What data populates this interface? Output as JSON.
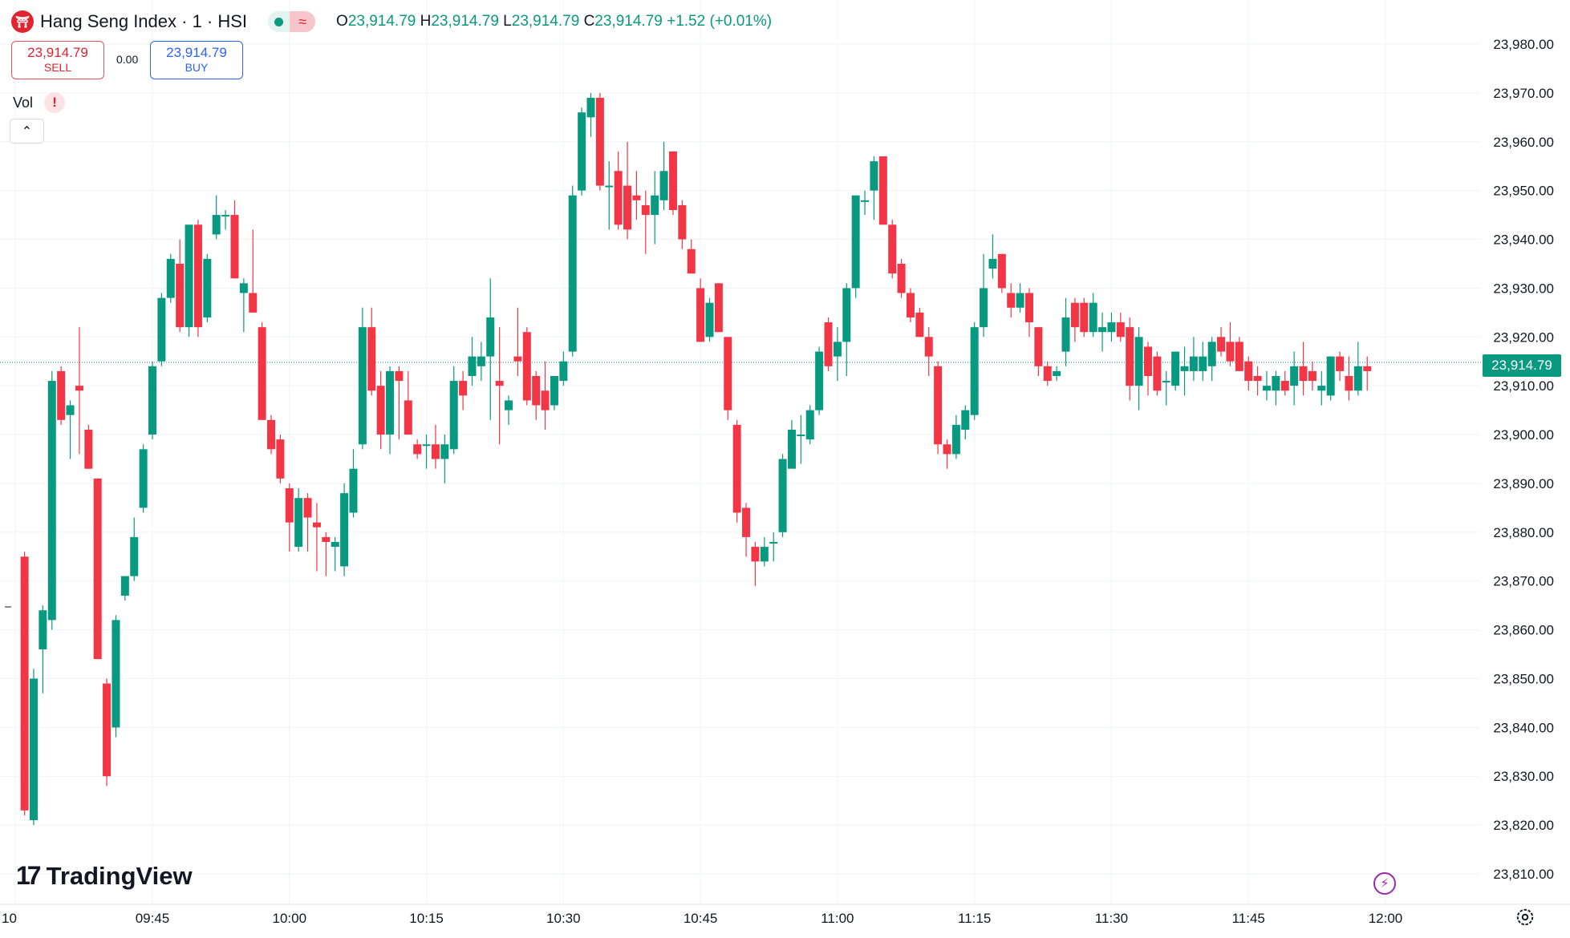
{
  "header": {
    "logo_glyph": "⛩",
    "title": "Hang Seng Index · 1 · HSI",
    "status_icon": "market-open-dot",
    "wave_glyph": "≈",
    "ohlc": {
      "o_label": "O",
      "o_value": "23,914.79",
      "h_label": "H",
      "h_value": "23,914.79",
      "l_label": "L",
      "l_value": "23,914.79",
      "c_label": "C",
      "c_value": "23,914.79",
      "change": "+1.52 (+0.01%)"
    }
  },
  "trade": {
    "sell_price": "23,914.79",
    "sell_label": "SELL",
    "spread": "0.00",
    "buy_price": "23,914.79",
    "buy_label": "BUY"
  },
  "vol": {
    "label": "Vol",
    "warning_glyph": "!"
  },
  "collapse_glyph": "⌃",
  "brand": {
    "mark": "17",
    "name": "TradingView"
  },
  "bolt_glyph": "⚡",
  "colors": {
    "up": "#089981",
    "down": "#f23645",
    "grid": "#f0f3fa",
    "text": "#131722",
    "price_line": "#089981"
  },
  "chart_data": {
    "type": "candlestick",
    "title": "Hang Seng Index · 1 · HSI",
    "interval_minutes": 1,
    "y_axis_labels": [
      "23,980.00",
      "23,970.00",
      "23,960.00",
      "23,950.00",
      "23,940.00",
      "23,930.00",
      "23,920.00",
      "23,910.00",
      "23,900.00",
      "23,890.00",
      "23,880.00",
      "23,870.00",
      "23,860.00",
      "23,850.00",
      "23,840.00",
      "23,830.00",
      "23,820.00",
      "23,810.00"
    ],
    "ylim": [
      23805,
      23985
    ],
    "x_axis_labels": [
      {
        "label": "10",
        "minute": 570
      },
      {
        "label": "09:45",
        "minute": 585
      },
      {
        "label": "10:00",
        "minute": 600
      },
      {
        "label": "10:15",
        "minute": 615
      },
      {
        "label": "10:30",
        "minute": 630
      },
      {
        "label": "10:45",
        "minute": 645
      },
      {
        "label": "11:00",
        "minute": 660
      },
      {
        "label": "11:15",
        "minute": 675
      },
      {
        "label": "11:30",
        "minute": 690
      },
      {
        "label": "11:45",
        "minute": 705
      },
      {
        "label": "12:00",
        "minute": 720
      }
    ],
    "last_price": 23914.79,
    "last_price_label": "23,914.79",
    "grid": true,
    "candles": [
      {
        "t": "09:31",
        "o": 23875,
        "h": 23876,
        "l": 23822,
        "c": 23823
      },
      {
        "t": "09:32",
        "o": 23821,
        "h": 23852,
        "l": 23820,
        "c": 23850
      },
      {
        "t": "09:33",
        "o": 23856,
        "h": 23865,
        "l": 23847,
        "c": 23864
      },
      {
        "t": "09:34",
        "o": 23862,
        "h": 23913,
        "l": 23860,
        "c": 23911
      },
      {
        "t": "09:35",
        "o": 23913,
        "h": 23914,
        "l": 23902,
        "c": 23903
      },
      {
        "t": "09:36",
        "o": 23904,
        "h": 23907,
        "l": 23895,
        "c": 23906
      },
      {
        "t": "09:37",
        "o": 23910,
        "h": 23922,
        "l": 23896,
        "c": 23909
      },
      {
        "t": "09:38",
        "o": 23901,
        "h": 23902,
        "l": 23893,
        "c": 23893
      },
      {
        "t": "09:39",
        "o": 23891,
        "h": 23891,
        "l": 23854,
        "c": 23854
      },
      {
        "t": "09:40",
        "o": 23849,
        "h": 23850,
        "l": 23828,
        "c": 23830
      },
      {
        "t": "09:41",
        "o": 23840,
        "h": 23863,
        "l": 23838,
        "c": 23862
      },
      {
        "t": "09:42",
        "o": 23867,
        "h": 23871,
        "l": 23866,
        "c": 23871
      },
      {
        "t": "09:43",
        "o": 23871,
        "h": 23883,
        "l": 23870,
        "c": 23879
      },
      {
        "t": "09:44",
        "o": 23885,
        "h": 23898,
        "l": 23884,
        "c": 23897
      },
      {
        "t": "09:45",
        "o": 23900,
        "h": 23915,
        "l": 23899,
        "c": 23914
      },
      {
        "t": "09:46",
        "o": 23915,
        "h": 23929,
        "l": 23914,
        "c": 23928
      },
      {
        "t": "09:47",
        "o": 23928,
        "h": 23937,
        "l": 23927,
        "c": 23936
      },
      {
        "t": "09:48",
        "o": 23935,
        "h": 23940,
        "l": 23921,
        "c": 23922
      },
      {
        "t": "09:49",
        "o": 23922,
        "h": 23943,
        "l": 23920,
        "c": 23943
      },
      {
        "t": "09:50",
        "o": 23943,
        "h": 23944,
        "l": 23920,
        "c": 23922
      },
      {
        "t": "09:51",
        "o": 23924,
        "h": 23937,
        "l": 23923,
        "c": 23936
      },
      {
        "t": "09:52",
        "o": 23941,
        "h": 23949,
        "l": 23940,
        "c": 23945
      },
      {
        "t": "09:53",
        "o": 23945,
        "h": 23946,
        "l": 23942,
        "c": 23945
      },
      {
        "t": "09:54",
        "o": 23945,
        "h": 23948,
        "l": 23932,
        "c": 23932
      },
      {
        "t": "09:55",
        "o": 23929,
        "h": 23932,
        "l": 23921,
        "c": 23931
      },
      {
        "t": "09:56",
        "o": 23929,
        "h": 23942,
        "l": 23925,
        "c": 23925
      },
      {
        "t": "09:57",
        "o": 23922,
        "h": 23923,
        "l": 23903,
        "c": 23903
      },
      {
        "t": "09:58",
        "o": 23903,
        "h": 23904,
        "l": 23896,
        "c": 23897
      },
      {
        "t": "09:59",
        "o": 23899,
        "h": 23900,
        "l": 23890,
        "c": 23891
      },
      {
        "t": "10:00",
        "o": 23889,
        "h": 23890,
        "l": 23876,
        "c": 23882
      },
      {
        "t": "10:01",
        "o": 23877,
        "h": 23889,
        "l": 23876,
        "c": 23887
      },
      {
        "t": "10:02",
        "o": 23887,
        "h": 23888,
        "l": 23876,
        "c": 23883
      },
      {
        "t": "10:03",
        "o": 23882,
        "h": 23886,
        "l": 23872,
        "c": 23881
      },
      {
        "t": "10:04",
        "o": 23879,
        "h": 23880,
        "l": 23871,
        "c": 23878
      },
      {
        "t": "10:05",
        "o": 23877,
        "h": 23879,
        "l": 23872,
        "c": 23878
      },
      {
        "t": "10:06",
        "o": 23873,
        "h": 23890,
        "l": 23871,
        "c": 23888
      },
      {
        "t": "10:07",
        "o": 23884,
        "h": 23897,
        "l": 23883,
        "c": 23893
      },
      {
        "t": "10:08",
        "o": 23898,
        "h": 23926,
        "l": 23897,
        "c": 23922
      },
      {
        "t": "10:09",
        "o": 23922,
        "h": 23926,
        "l": 23908,
        "c": 23909
      },
      {
        "t": "10:10",
        "o": 23910,
        "h": 23913,
        "l": 23897,
        "c": 23900
      },
      {
        "t": "10:11",
        "o": 23900,
        "h": 23914,
        "l": 23896,
        "c": 23913
      },
      {
        "t": "10:12",
        "o": 23913,
        "h": 23914,
        "l": 23899,
        "c": 23911
      },
      {
        "t": "10:13",
        "o": 23907,
        "h": 23913,
        "l": 23900,
        "c": 23900
      },
      {
        "t": "10:14",
        "o": 23898,
        "h": 23899,
        "l": 23895,
        "c": 23896
      },
      {
        "t": "10:15",
        "o": 23898,
        "h": 23900,
        "l": 23893,
        "c": 23898
      },
      {
        "t": "10:16",
        "o": 23898,
        "h": 23902,
        "l": 23893,
        "c": 23895
      },
      {
        "t": "10:17",
        "o": 23895,
        "h": 23900,
        "l": 23890,
        "c": 23898
      },
      {
        "t": "10:18",
        "o": 23897,
        "h": 23914,
        "l": 23896,
        "c": 23911
      },
      {
        "t": "10:19",
        "o": 23911,
        "h": 23913,
        "l": 23905,
        "c": 23908
      },
      {
        "t": "10:20",
        "o": 23912,
        "h": 23920,
        "l": 23910,
        "c": 23916
      },
      {
        "t": "10:21",
        "o": 23914,
        "h": 23919,
        "l": 23911,
        "c": 23916
      },
      {
        "t": "10:22",
        "o": 23916,
        "h": 23932,
        "l": 23903,
        "c": 23924
      },
      {
        "t": "10:23",
        "o": 23911,
        "h": 23922,
        "l": 23898,
        "c": 23910
      },
      {
        "t": "10:24",
        "o": 23905,
        "h": 23908,
        "l": 23902,
        "c": 23907
      },
      {
        "t": "10:25",
        "o": 23916,
        "h": 23926,
        "l": 23912,
        "c": 23915
      },
      {
        "t": "10:26",
        "o": 23921,
        "h": 23922,
        "l": 23906,
        "c": 23907
      },
      {
        "t": "10:27",
        "o": 23912,
        "h": 23913,
        "l": 23903,
        "c": 23906
      },
      {
        "t": "10:28",
        "o": 23909,
        "h": 23915,
        "l": 23901,
        "c": 23905
      },
      {
        "t": "10:29",
        "o": 23906,
        "h": 23912,
        "l": 23905,
        "c": 23912
      },
      {
        "t": "10:30",
        "o": 23911,
        "h": 23917,
        "l": 23910,
        "c": 23915
      },
      {
        "t": "10:31",
        "o": 23917,
        "h": 23951,
        "l": 23916,
        "c": 23949
      },
      {
        "t": "10:32",
        "o": 23950,
        "h": 23967,
        "l": 23949,
        "c": 23966
      },
      {
        "t": "10:33",
        "o": 23965,
        "h": 23970,
        "l": 23961,
        "c": 23969
      },
      {
        "t": "10:34",
        "o": 23969,
        "h": 23970,
        "l": 23950,
        "c": 23951
      },
      {
        "t": "10:35",
        "o": 23951,
        "h": 23956,
        "l": 23942,
        "c": 23951
      },
      {
        "t": "10:36",
        "o": 23954,
        "h": 23958,
        "l": 23942,
        "c": 23943
      },
      {
        "t": "10:37",
        "o": 23951,
        "h": 23960,
        "l": 23940,
        "c": 23942
      },
      {
        "t": "10:38",
        "o": 23949,
        "h": 23954,
        "l": 23944,
        "c": 23948
      },
      {
        "t": "10:39",
        "o": 23947,
        "h": 23950,
        "l": 23937,
        "c": 23945
      },
      {
        "t": "10:40",
        "o": 23945,
        "h": 23954,
        "l": 23939,
        "c": 23949
      },
      {
        "t": "10:41",
        "o": 23948,
        "h": 23960,
        "l": 23946,
        "c": 23954
      },
      {
        "t": "10:42",
        "o": 23958,
        "h": 23958,
        "l": 23945,
        "c": 23946
      },
      {
        "t": "10:43",
        "o": 23947,
        "h": 23948,
        "l": 23938,
        "c": 23940
      },
      {
        "t": "10:44",
        "o": 23938,
        "h": 23940,
        "l": 23933,
        "c": 23933
      },
      {
        "t": "10:45",
        "o": 23930,
        "h": 23932,
        "l": 23919,
        "c": 23919
      },
      {
        "t": "10:46",
        "o": 23920,
        "h": 23928,
        "l": 23919,
        "c": 23927
      },
      {
        "t": "10:47",
        "o": 23931,
        "h": 23931,
        "l": 23921,
        "c": 23921
      },
      {
        "t": "10:48",
        "o": 23920,
        "h": 23920,
        "l": 23903,
        "c": 23905
      },
      {
        "t": "10:49",
        "o": 23902,
        "h": 23903,
        "l": 23882,
        "c": 23884
      },
      {
        "t": "10:50",
        "o": 23885,
        "h": 23886,
        "l": 23875,
        "c": 23879
      },
      {
        "t": "10:51",
        "o": 23877,
        "h": 23878,
        "l": 23869,
        "c": 23874
      },
      {
        "t": "10:52",
        "o": 23874,
        "h": 23879,
        "l": 23873,
        "c": 23877
      },
      {
        "t": "10:53",
        "o": 23878,
        "h": 23880,
        "l": 23874,
        "c": 23878
      },
      {
        "t": "10:54",
        "o": 23880,
        "h": 23896,
        "l": 23879,
        "c": 23895
      },
      {
        "t": "10:55",
        "o": 23893,
        "h": 23903,
        "l": 23894,
        "c": 23901
      },
      {
        "t": "10:56",
        "o": 23900,
        "h": 23904,
        "l": 23894,
        "c": 23900
      },
      {
        "t": "10:57",
        "o": 23899,
        "h": 23906,
        "l": 23898,
        "c": 23905
      },
      {
        "t": "10:58",
        "o": 23905,
        "h": 23918,
        "l": 23904,
        "c": 23917
      },
      {
        "t": "10:59",
        "o": 23923,
        "h": 23924,
        "l": 23913,
        "c": 23914
      },
      {
        "t": "11:00",
        "o": 23916,
        "h": 23922,
        "l": 23911,
        "c": 23919
      },
      {
        "t": "11:01",
        "o": 23919,
        "h": 23931,
        "l": 23912,
        "c": 23930
      },
      {
        "t": "11:02",
        "o": 23930,
        "h": 23949,
        "l": 23928,
        "c": 23949
      },
      {
        "t": "11:03",
        "o": 23948,
        "h": 23950,
        "l": 23945,
        "c": 23948
      },
      {
        "t": "11:04",
        "o": 23950,
        "h": 23957,
        "l": 23944,
        "c": 23956
      },
      {
        "t": "11:05",
        "o": 23957,
        "h": 23957,
        "l": 23943,
        "c": 23943
      },
      {
        "t": "11:06",
        "o": 23943,
        "h": 23944,
        "l": 23932,
        "c": 23933
      },
      {
        "t": "11:07",
        "o": 23935,
        "h": 23936,
        "l": 23928,
        "c": 23929
      },
      {
        "t": "11:08",
        "o": 23929,
        "h": 23930,
        "l": 23923,
        "c": 23924
      },
      {
        "t": "11:09",
        "o": 23925,
        "h": 23926,
        "l": 23920,
        "c": 23920
      },
      {
        "t": "11:10",
        "o": 23920,
        "h": 23922,
        "l": 23912,
        "c": 23916
      },
      {
        "t": "11:11",
        "o": 23914,
        "h": 23915,
        "l": 23896,
        "c": 23898
      },
      {
        "t": "11:12",
        "o": 23898,
        "h": 23899,
        "l": 23893,
        "c": 23896
      },
      {
        "t": "11:13",
        "o": 23896,
        "h": 23904,
        "l": 23895,
        "c": 23902
      },
      {
        "t": "11:14",
        "o": 23901,
        "h": 23906,
        "l": 23899,
        "c": 23905
      },
      {
        "t": "11:15",
        "o": 23904,
        "h": 23923,
        "l": 23903,
        "c": 23922
      },
      {
        "t": "11:16",
        "o": 23922,
        "h": 23937,
        "l": 23920,
        "c": 23930
      },
      {
        "t": "11:17",
        "o": 23934,
        "h": 23941,
        "l": 23932,
        "c": 23936
      },
      {
        "t": "11:18",
        "o": 23937,
        "h": 23937,
        "l": 23929,
        "c": 23930
      },
      {
        "t": "11:19",
        "o": 23929,
        "h": 23931,
        "l": 23924,
        "c": 23926
      },
      {
        "t": "11:20",
        "o": 23926,
        "h": 23931,
        "l": 23925,
        "c": 23929
      },
      {
        "t": "11:21",
        "o": 23929,
        "h": 23930,
        "l": 23920,
        "c": 23923
      },
      {
        "t": "11:22",
        "o": 23922,
        "h": 23922,
        "l": 23912,
        "c": 23914
      },
      {
        "t": "11:23",
        "o": 23914,
        "h": 23915,
        "l": 23910,
        "c": 23911
      },
      {
        "t": "11:24",
        "o": 23912,
        "h": 23914,
        "l": 23911,
        "c": 23913
      },
      {
        "t": "11:25",
        "o": 23917,
        "h": 23928,
        "l": 23914,
        "c": 23924
      },
      {
        "t": "11:26",
        "o": 23927,
        "h": 23928,
        "l": 23919,
        "c": 23922
      },
      {
        "t": "11:27",
        "o": 23927,
        "h": 23928,
        "l": 23920,
        "c": 23921
      },
      {
        "t": "11:28",
        "o": 23921,
        "h": 23929,
        "l": 23920,
        "c": 23927
      },
      {
        "t": "11:29",
        "o": 23921,
        "h": 23925,
        "l": 23917,
        "c": 23922
      },
      {
        "t": "11:30",
        "o": 23921,
        "h": 23925,
        "l": 23919,
        "c": 23923
      },
      {
        "t": "11:31",
        "o": 23923,
        "h": 23925,
        "l": 23919,
        "c": 23920
      },
      {
        "t": "11:32",
        "o": 23922,
        "h": 23924,
        "l": 23907,
        "c": 23910
      },
      {
        "t": "11:33",
        "o": 23910,
        "h": 23922,
        "l": 23905,
        "c": 23920
      },
      {
        "t": "11:34",
        "o": 23918,
        "h": 23919,
        "l": 23908,
        "c": 23912
      },
      {
        "t": "11:35",
        "o": 23916,
        "h": 23917,
        "l": 23908,
        "c": 23909
      },
      {
        "t": "11:36",
        "o": 23911,
        "h": 23913,
        "l": 23906,
        "c": 23911
      },
      {
        "t": "11:37",
        "o": 23910,
        "h": 23917,
        "l": 23909,
        "c": 23917
      },
      {
        "t": "11:38",
        "o": 23913,
        "h": 23918,
        "l": 23908,
        "c": 23914
      },
      {
        "t": "11:39",
        "o": 23913,
        "h": 23920,
        "l": 23911,
        "c": 23916
      },
      {
        "t": "11:40",
        "o": 23913,
        "h": 23919,
        "l": 23911,
        "c": 23916
      },
      {
        "t": "11:41",
        "o": 23914,
        "h": 23920,
        "l": 23911,
        "c": 23919
      },
      {
        "t": "11:42",
        "o": 23920,
        "h": 23922,
        "l": 23916,
        "c": 23917
      },
      {
        "t": "11:43",
        "o": 23919,
        "h": 23923,
        "l": 23914,
        "c": 23915
      },
      {
        "t": "11:44",
        "o": 23919,
        "h": 23920,
        "l": 23913,
        "c": 23913
      },
      {
        "t": "11:45",
        "o": 23915,
        "h": 23916,
        "l": 23909,
        "c": 23911
      },
      {
        "t": "11:46",
        "o": 23912,
        "h": 23914,
        "l": 23908,
        "c": 23911
      },
      {
        "t": "11:47",
        "o": 23909,
        "h": 23913,
        "l": 23907,
        "c": 23910
      },
      {
        "t": "11:48",
        "o": 23909,
        "h": 23913,
        "l": 23906,
        "c": 23912
      },
      {
        "t": "11:49",
        "o": 23911,
        "h": 23913,
        "l": 23908,
        "c": 23909
      },
      {
        "t": "11:50",
        "o": 23910,
        "h": 23917,
        "l": 23906,
        "c": 23914
      },
      {
        "t": "11:51",
        "o": 23914,
        "h": 23919,
        "l": 23908,
        "c": 23911
      },
      {
        "t": "11:52",
        "o": 23913,
        "h": 23915,
        "l": 23909,
        "c": 23911
      },
      {
        "t": "11:53",
        "o": 23909,
        "h": 23913,
        "l": 23906,
        "c": 23910
      },
      {
        "t": "11:54",
        "o": 23908,
        "h": 23916,
        "l": 23907,
        "c": 23916
      },
      {
        "t": "11:55",
        "o": 23916,
        "h": 23917,
        "l": 23911,
        "c": 23913
      },
      {
        "t": "11:56",
        "o": 23912,
        "h": 23916,
        "l": 23907,
        "c": 23909
      },
      {
        "t": "11:57",
        "o": 23909,
        "h": 23919,
        "l": 23908,
        "c": 23914
      },
      {
        "t": "11:58",
        "o": 23914,
        "h": 23916,
        "l": 23909,
        "c": 23913
      }
    ]
  }
}
